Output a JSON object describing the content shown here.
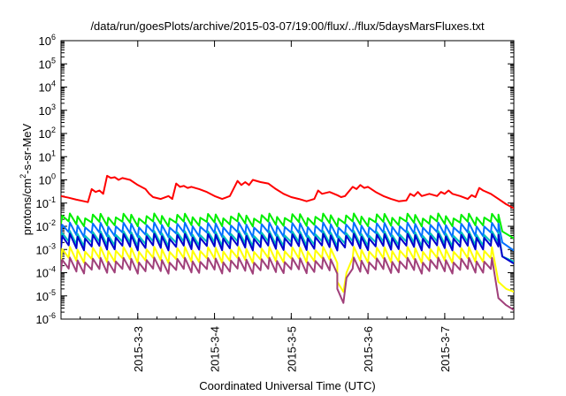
{
  "chart_data": {
    "type": "line",
    "title": "/data/run/goesPlots/archive/2015-03-07/19:00/flux/../flux/5daysMarsFluxes.txt",
    "xlabel": "Coordinated Universal Time (UTC)",
    "ylabel": {
      "main": "protons/cm",
      "sup": "2",
      "tail": "-s-sr-MeV"
    },
    "y_scale": "log",
    "ylim": [
      1e-06,
      1000000.0
    ],
    "y_ticks": [
      {
        "value": 1e-06,
        "base": "10",
        "exp": "-6"
      },
      {
        "value": 1e-05,
        "base": "10",
        "exp": "-5"
      },
      {
        "value": 0.0001,
        "base": "10",
        "exp": "-4"
      },
      {
        "value": 0.001,
        "base": "10",
        "exp": "-3"
      },
      {
        "value": 0.01,
        "base": "10",
        "exp": "-2"
      },
      {
        "value": 0.1,
        "base": "10",
        "exp": "-1"
      },
      {
        "value": 1.0,
        "base": "10",
        "exp": "0"
      },
      {
        "value": 10.0,
        "base": "10",
        "exp": "1"
      },
      {
        "value": 100.0,
        "base": "10",
        "exp": "2"
      },
      {
        "value": 1000.0,
        "base": "10",
        "exp": "3"
      },
      {
        "value": 10000.0,
        "base": "10",
        "exp": "4"
      },
      {
        "value": 100000.0,
        "base": "10",
        "exp": "5"
      },
      {
        "value": 1000000.0,
        "base": "10",
        "exp": "6"
      }
    ],
    "x_unit": "days",
    "xlim": [
      2.0,
      7.9
    ],
    "x_ticks": [
      {
        "value": 3,
        "label": "2015-3-3"
      },
      {
        "value": 4,
        "label": "2015-3-4"
      },
      {
        "value": 5,
        "label": "2015-3-5"
      },
      {
        "value": 6,
        "label": "2015-3-6"
      },
      {
        "value": 7,
        "label": "2015-3-7"
      }
    ],
    "grid": false,
    "series": [
      {
        "color": "#ff0000",
        "points": [
          [
            2.0,
            0.2
          ],
          [
            2.1,
            0.17
          ],
          [
            2.2,
            0.14
          ],
          [
            2.3,
            0.12
          ],
          [
            2.35,
            0.11
          ],
          [
            2.4,
            0.4
          ],
          [
            2.45,
            0.3
          ],
          [
            2.5,
            0.35
          ],
          [
            2.55,
            0.25
          ],
          [
            2.6,
            1.5
          ],
          [
            2.65,
            1.2
          ],
          [
            2.7,
            1.3
          ],
          [
            2.75,
            1.0
          ],
          [
            2.8,
            1.2
          ],
          [
            2.9,
            1.0
          ],
          [
            3.0,
            0.6
          ],
          [
            3.1,
            0.4
          ],
          [
            3.15,
            0.25
          ],
          [
            3.2,
            0.18
          ],
          [
            3.3,
            0.15
          ],
          [
            3.4,
            0.2
          ],
          [
            3.45,
            0.15
          ],
          [
            3.5,
            0.7
          ],
          [
            3.55,
            0.5
          ],
          [
            3.6,
            0.55
          ],
          [
            3.65,
            0.45
          ],
          [
            3.7,
            0.5
          ],
          [
            3.8,
            0.4
          ],
          [
            3.9,
            0.3
          ],
          [
            4.0,
            0.2
          ],
          [
            4.1,
            0.15
          ],
          [
            4.2,
            0.2
          ],
          [
            4.3,
            0.9
          ],
          [
            4.35,
            0.6
          ],
          [
            4.4,
            0.8
          ],
          [
            4.45,
            0.6
          ],
          [
            4.5,
            1.0
          ],
          [
            4.6,
            0.8
          ],
          [
            4.7,
            0.7
          ],
          [
            4.8,
            0.4
          ],
          [
            4.9,
            0.25
          ],
          [
            5.0,
            0.18
          ],
          [
            5.1,
            0.15
          ],
          [
            5.2,
            0.12
          ],
          [
            5.3,
            0.15
          ],
          [
            5.35,
            0.35
          ],
          [
            5.4,
            0.25
          ],
          [
            5.5,
            0.3
          ],
          [
            5.6,
            0.22
          ],
          [
            5.65,
            0.18
          ],
          [
            5.7,
            0.2
          ],
          [
            5.8,
            0.5
          ],
          [
            5.85,
            0.4
          ],
          [
            5.9,
            0.6
          ],
          [
            5.95,
            0.45
          ],
          [
            6.0,
            0.5
          ],
          [
            6.1,
            0.3
          ],
          [
            6.2,
            0.2
          ],
          [
            6.3,
            0.15
          ],
          [
            6.4,
            0.12
          ],
          [
            6.5,
            0.13
          ],
          [
            6.55,
            0.25
          ],
          [
            6.6,
            0.2
          ],
          [
            6.65,
            0.3
          ],
          [
            6.7,
            0.2
          ],
          [
            6.8,
            0.25
          ],
          [
            6.9,
            0.2
          ],
          [
            6.95,
            0.3
          ],
          [
            7.0,
            0.25
          ],
          [
            7.05,
            0.35
          ],
          [
            7.1,
            0.25
          ],
          [
            7.2,
            0.2
          ],
          [
            7.3,
            0.15
          ],
          [
            7.35,
            0.22
          ],
          [
            7.4,
            0.18
          ],
          [
            7.45,
            0.45
          ],
          [
            7.5,
            0.35
          ],
          [
            7.6,
            0.25
          ],
          [
            7.7,
            0.15
          ],
          [
            7.8,
            0.09
          ],
          [
            7.9,
            0.06
          ]
        ]
      },
      {
        "color": "#00ee00",
        "sawtooth": true,
        "base": 0.013,
        "peak_factor": 2.2,
        "period": 0.1,
        "start": 2.0,
        "end": 7.9,
        "tail": [
          [
            7.75,
            0.006
          ],
          [
            7.9,
            0.003
          ]
        ]
      },
      {
        "color": "#0070ff",
        "sawtooth": true,
        "base": 0.0045,
        "peak_factor": 2.6,
        "period": 0.1,
        "start": 2.0,
        "end": 7.9,
        "tail": [
          [
            7.75,
            0.002
          ],
          [
            7.9,
            0.0009
          ]
        ]
      },
      {
        "color": "#00c0c0",
        "sawtooth": true,
        "base": 0.0018,
        "peak_factor": 2.8,
        "period": 0.1,
        "start": 2.0,
        "end": 7.9,
        "tail": [
          [
            7.75,
            0.0005
          ],
          [
            7.9,
            0.0003
          ]
        ]
      },
      {
        "color": "#0000cc",
        "sawtooth": true,
        "base": 0.0012,
        "peak_factor": 3.2,
        "period": 0.1,
        "start": 2.0,
        "end": 7.9,
        "tail": [
          [
            7.75,
            0.0005
          ],
          [
            7.9,
            0.00025
          ]
        ]
      },
      {
        "color": "#ffff00",
        "sawtooth": true,
        "base": 0.00035,
        "peak_factor": 3.0,
        "period": 0.1,
        "start": 2.0,
        "end": 7.9,
        "dip": [
          [
            5.6,
            4e-05
          ],
          [
            5.68,
            1.5e-05
          ],
          [
            5.72,
            0.0001
          ]
        ],
        "tail": [
          [
            7.7,
            4e-05
          ],
          [
            7.8,
            2e-05
          ],
          [
            7.9,
            1.5e-05
          ]
        ]
      },
      {
        "color": "#a0407a",
        "sawtooth": true,
        "base": 0.00012,
        "peak_factor": 3.0,
        "period": 0.1,
        "start": 2.0,
        "end": 7.9,
        "dip": [
          [
            5.6,
            2e-05
          ],
          [
            5.68,
            5e-06
          ],
          [
            5.72,
            6e-05
          ]
        ],
        "tail": [
          [
            7.7,
            8e-06
          ],
          [
            7.8,
            4e-06
          ],
          [
            7.9,
            2.5e-06
          ]
        ]
      }
    ]
  }
}
